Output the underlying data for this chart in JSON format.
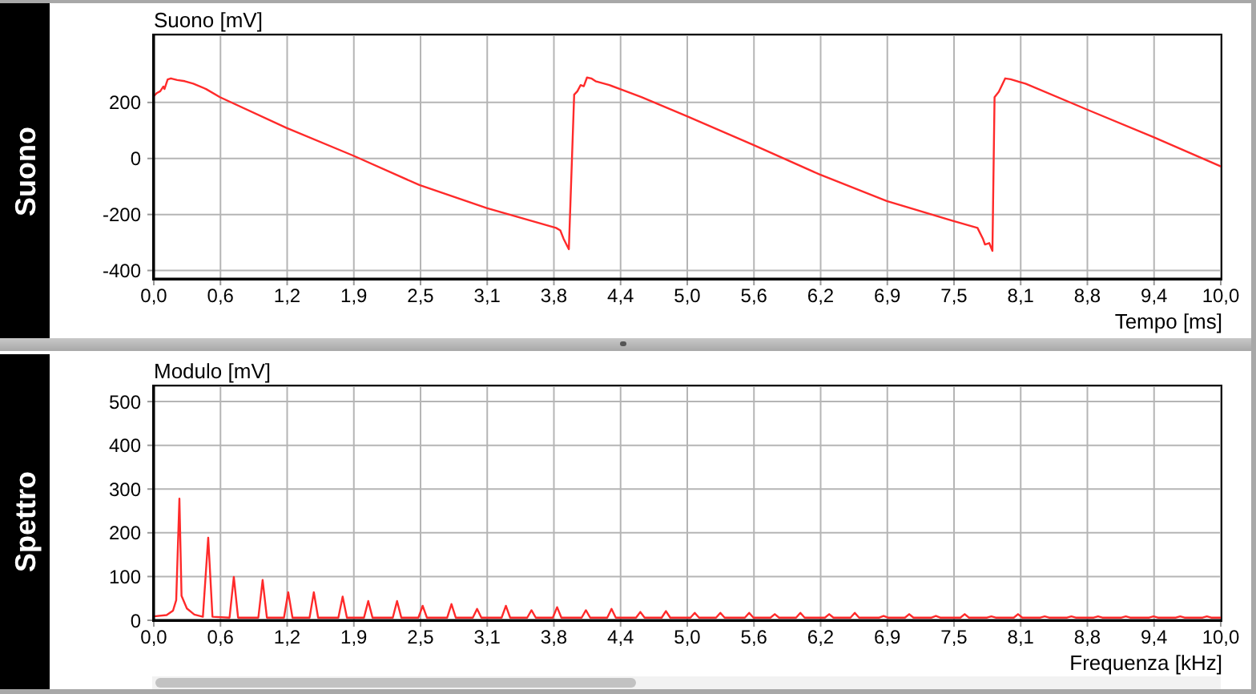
{
  "chart_data": [
    {
      "type": "line",
      "title": "Suono",
      "ylabel": "Suono [mV]",
      "xlabel": "Tempo [ms]",
      "color": "#ff2a2a",
      "x": [
        0,
        0.03,
        0.06,
        0.09,
        0.1,
        0.13,
        0.16,
        0.22,
        0.29,
        0.37,
        0.49,
        0.62,
        1.24,
        1.87,
        2.49,
        3.12,
        3.77,
        3.81,
        3.84,
        3.89,
        3.94,
        3.97,
        4.0,
        4.03,
        4.06,
        4.1,
        4.14,
        4.27,
        4.37,
        4.57,
        4.99,
        5.62,
        6.24,
        6.87,
        7.49,
        7.72,
        7.77,
        7.79,
        7.83,
        7.86,
        7.88,
        7.92,
        7.98,
        8.03,
        8.17,
        8.77,
        9.37,
        10.0
      ],
      "values": [
        223,
        234,
        240,
        257,
        248,
        282,
        286,
        280,
        276,
        267,
        248,
        219,
        110,
        10,
        -95,
        -177,
        -248,
        -257,
        -286,
        -324,
        228,
        240,
        262,
        258,
        289,
        286,
        276,
        262,
        248,
        219,
        152,
        48,
        -57,
        -152,
        -223,
        -248,
        -286,
        -307,
        -302,
        -330,
        219,
        238,
        286,
        283,
        267,
        171,
        76,
        -28
      ],
      "xlim": [
        0,
        10
      ],
      "xticks": [
        {
          "value": 0,
          "label": "0,0"
        },
        {
          "value": 0.625,
          "label": "0,6"
        },
        {
          "value": 1.25,
          "label": "1,2"
        },
        {
          "value": 1.875,
          "label": "1,9"
        },
        {
          "value": 2.5,
          "label": "2,5"
        },
        {
          "value": 3.125,
          "label": "3,1"
        },
        {
          "value": 3.75,
          "label": "3,8"
        },
        {
          "value": 4.375,
          "label": "4,4"
        },
        {
          "value": 5,
          "label": "5,0"
        },
        {
          "value": 5.625,
          "label": "5,6"
        },
        {
          "value": 6.25,
          "label": "6,2"
        },
        {
          "value": 6.875,
          "label": "6,9"
        },
        {
          "value": 7.5,
          "label": "7,5"
        },
        {
          "value": 8.125,
          "label": "8,1"
        },
        {
          "value": 8.75,
          "label": "8,8"
        },
        {
          "value": 9.375,
          "label": "9,4"
        },
        {
          "value": 10,
          "label": "10,0"
        }
      ],
      "ylim": [
        -430,
        440
      ],
      "yticks": [
        -400,
        -200,
        0,
        200
      ],
      "grid": true
    },
    {
      "type": "line",
      "title": "Spettro",
      "ylabel": "Modulo [mV]",
      "xlabel": "Frequenza [kHz]",
      "color": "#ff2a2a",
      "x": [
        0,
        0.12,
        0.18,
        0.21,
        0.24,
        0.26,
        0.31,
        0.38,
        0.46,
        0.51,
        0.55,
        0.71,
        0.75,
        0.79,
        0.98,
        1.02,
        1.06,
        1.22,
        1.26,
        1.3,
        1.46,
        1.5,
        1.54,
        1.73,
        1.77,
        1.81,
        1.97,
        2.01,
        2.05,
        2.24,
        2.28,
        2.32,
        2.48,
        2.52,
        2.56,
        2.75,
        2.79,
        2.83,
        2.99,
        3.03,
        3.07,
        3.26,
        3.3,
        3.34,
        3.5,
        3.54,
        3.58,
        3.74,
        3.78,
        3.82,
        4.01,
        4.05,
        4.09,
        4.25,
        4.29,
        4.33,
        4.52,
        4.56,
        4.6,
        4.76,
        4.8,
        4.84,
        5.03,
        5.07,
        5.11,
        5.27,
        5.31,
        5.35,
        5.54,
        5.58,
        5.62,
        5.78,
        5.82,
        5.86,
        6.02,
        6.06,
        6.1,
        6.29,
        6.33,
        6.37,
        6.53,
        6.57,
        6.61,
        6.8,
        6.84,
        6.88,
        7.04,
        7.08,
        7.12,
        7.29,
        7.33,
        7.37,
        7.56,
        7.6,
        7.64,
        7.81,
        7.85,
        7.89,
        8.06,
        8.1,
        8.14,
        8.31,
        8.35,
        8.39,
        8.56,
        8.6,
        8.64,
        8.81,
        8.85,
        8.89,
        9.07,
        9.11,
        9.15,
        9.33,
        9.37,
        9.41,
        9.58,
        9.62,
        9.66,
        9.83,
        9.87,
        9.91,
        10.0
      ],
      "values": [
        9,
        12,
        22,
        46,
        278,
        56,
        27,
        13,
        8,
        189,
        8,
        6,
        99,
        6,
        6,
        92,
        6,
        6,
        64,
        6,
        6,
        64,
        6,
        6,
        54,
        6,
        6,
        44,
        6,
        6,
        44,
        6,
        6,
        33,
        6,
        6,
        37,
        6,
        6,
        26,
        6,
        6,
        33,
        6,
        6,
        23,
        6,
        6,
        30,
        6,
        6,
        23,
        6,
        6,
        26,
        6,
        6,
        19,
        6,
        6,
        21,
        6,
        6,
        17,
        6,
        6,
        17,
        6,
        6,
        17,
        6,
        6,
        14,
        6,
        6,
        17,
        6,
        6,
        14,
        6,
        6,
        17,
        6,
        6,
        10,
        6,
        6,
        14,
        6,
        6,
        10,
        6,
        6,
        14,
        6,
        6,
        9,
        6,
        6,
        14,
        6,
        6,
        9,
        6,
        6,
        9,
        6,
        6,
        9,
        6,
        6,
        9,
        6,
        6,
        9,
        6,
        6,
        9,
        6,
        6,
        9,
        6,
        6
      ],
      "xlim": [
        0,
        10
      ],
      "xticks": [
        {
          "value": 0,
          "label": "0,0"
        },
        {
          "value": 0.625,
          "label": "0,6"
        },
        {
          "value": 1.25,
          "label": "1,2"
        },
        {
          "value": 1.875,
          "label": "1,9"
        },
        {
          "value": 2.5,
          "label": "2,5"
        },
        {
          "value": 3.125,
          "label": "3,1"
        },
        {
          "value": 3.75,
          "label": "3,8"
        },
        {
          "value": 4.375,
          "label": "4,4"
        },
        {
          "value": 5,
          "label": "5,0"
        },
        {
          "value": 5.625,
          "label": "5,6"
        },
        {
          "value": 6.25,
          "label": "6,2"
        },
        {
          "value": 6.875,
          "label": "6,9"
        },
        {
          "value": 7.5,
          "label": "7,5"
        },
        {
          "value": 8.125,
          "label": "8,1"
        },
        {
          "value": 8.75,
          "label": "8,8"
        },
        {
          "value": 9.375,
          "label": "9,4"
        },
        {
          "value": 10,
          "label": "10,0"
        }
      ],
      "ylim": [
        0,
        535
      ],
      "yticks": [
        0,
        100,
        200,
        300,
        400,
        500
      ],
      "grid": true
    }
  ]
}
